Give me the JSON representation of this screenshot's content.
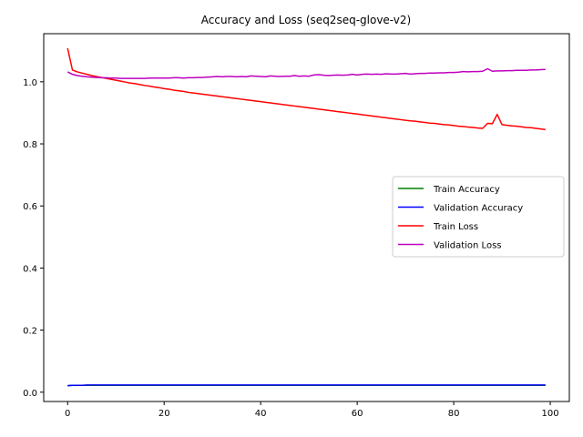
{
  "chart_data": {
    "type": "line",
    "title": "Accuracy and Loss (seq2seq-glove-v2)",
    "xlabel": "",
    "ylabel": "",
    "xlim": [
      -4.95,
      103.95
    ],
    "ylim": [
      -0.03,
      1.155
    ],
    "xticks": [
      0,
      20,
      40,
      60,
      80,
      100
    ],
    "yticks": [
      0.0,
      0.2,
      0.4,
      0.6,
      0.8,
      1.0
    ],
    "xtick_labels": [
      "0",
      "20",
      "40",
      "60",
      "80",
      "100"
    ],
    "ytick_labels": [
      "0.0",
      "0.2",
      "0.4",
      "0.6",
      "0.8",
      "1.0"
    ],
    "grid": false,
    "legend_position": "center-right",
    "x": [
      0,
      1,
      2,
      3,
      4,
      5,
      6,
      7,
      8,
      9,
      10,
      11,
      12,
      13,
      14,
      15,
      16,
      17,
      18,
      19,
      20,
      21,
      22,
      23,
      24,
      25,
      26,
      27,
      28,
      29,
      30,
      31,
      32,
      33,
      34,
      35,
      36,
      37,
      38,
      39,
      40,
      41,
      42,
      43,
      44,
      45,
      46,
      47,
      48,
      49,
      50,
      51,
      52,
      53,
      54,
      55,
      56,
      57,
      58,
      59,
      60,
      61,
      62,
      63,
      64,
      65,
      66,
      67,
      68,
      69,
      70,
      71,
      72,
      73,
      74,
      75,
      76,
      77,
      78,
      79,
      80,
      81,
      82,
      83,
      84,
      85,
      86,
      87,
      88,
      89,
      90,
      91,
      92,
      93,
      94,
      95,
      96,
      97,
      98,
      99
    ],
    "series": [
      {
        "name": "Train Accuracy",
        "color": "#008000",
        "values": [
          0.021,
          0.022,
          0.022,
          0.022,
          0.022,
          0.022,
          0.022,
          0.022,
          0.022,
          0.022,
          0.022,
          0.022,
          0.022,
          0.022,
          0.022,
          0.022,
          0.022,
          0.022,
          0.022,
          0.022,
          0.022,
          0.022,
          0.022,
          0.022,
          0.022,
          0.022,
          0.022,
          0.022,
          0.022,
          0.022,
          0.022,
          0.022,
          0.022,
          0.022,
          0.022,
          0.022,
          0.022,
          0.022,
          0.022,
          0.022,
          0.022,
          0.022,
          0.022,
          0.022,
          0.022,
          0.022,
          0.022,
          0.022,
          0.022,
          0.022,
          0.022,
          0.022,
          0.022,
          0.022,
          0.022,
          0.022,
          0.022,
          0.022,
          0.022,
          0.022,
          0.022,
          0.022,
          0.022,
          0.022,
          0.022,
          0.022,
          0.022,
          0.022,
          0.022,
          0.022,
          0.022,
          0.022,
          0.022,
          0.022,
          0.022,
          0.022,
          0.022,
          0.022,
          0.022,
          0.022,
          0.022,
          0.022,
          0.022,
          0.022,
          0.022,
          0.022,
          0.022,
          0.022,
          0.022,
          0.022,
          0.022,
          0.022,
          0.022,
          0.022,
          0.022,
          0.022,
          0.022,
          0.022,
          0.022,
          0.022
        ]
      },
      {
        "name": "Validation Accuracy",
        "color": "#0000ff",
        "values": [
          0.021,
          0.022,
          0.022,
          0.022,
          0.023,
          0.023,
          0.023,
          0.023,
          0.023,
          0.023,
          0.023,
          0.023,
          0.023,
          0.023,
          0.023,
          0.023,
          0.023,
          0.023,
          0.023,
          0.023,
          0.023,
          0.023,
          0.023,
          0.023,
          0.023,
          0.023,
          0.023,
          0.023,
          0.023,
          0.023,
          0.023,
          0.023,
          0.023,
          0.023,
          0.023,
          0.023,
          0.023,
          0.023,
          0.023,
          0.023,
          0.023,
          0.023,
          0.023,
          0.023,
          0.023,
          0.023,
          0.023,
          0.023,
          0.023,
          0.023,
          0.023,
          0.023,
          0.023,
          0.023,
          0.023,
          0.023,
          0.023,
          0.023,
          0.023,
          0.023,
          0.023,
          0.023,
          0.023,
          0.023,
          0.023,
          0.023,
          0.023,
          0.023,
          0.023,
          0.023,
          0.023,
          0.023,
          0.023,
          0.023,
          0.023,
          0.023,
          0.023,
          0.023,
          0.023,
          0.023,
          0.023,
          0.023,
          0.023,
          0.023,
          0.023,
          0.023,
          0.023,
          0.023,
          0.023,
          0.023,
          0.023,
          0.023,
          0.023,
          0.023,
          0.023,
          0.023,
          0.023,
          0.023,
          0.023,
          0.023
        ]
      },
      {
        "name": "Train Loss",
        "color": "#ff0000",
        "values": [
          1.108,
          1.038,
          1.032,
          1.028,
          1.024,
          1.02,
          1.017,
          1.014,
          1.011,
          1.008,
          1.005,
          1.002,
          0.999,
          0.996,
          0.994,
          0.991,
          0.988,
          0.986,
          0.983,
          0.981,
          0.978,
          0.976,
          0.973,
          0.971,
          0.969,
          0.966,
          0.964,
          0.962,
          0.96,
          0.958,
          0.956,
          0.954,
          0.952,
          0.95,
          0.948,
          0.946,
          0.944,
          0.942,
          0.94,
          0.938,
          0.936,
          0.934,
          0.932,
          0.93,
          0.928,
          0.926,
          0.924,
          0.922,
          0.92,
          0.918,
          0.916,
          0.914,
          0.912,
          0.91,
          0.908,
          0.906,
          0.904,
          0.902,
          0.9,
          0.898,
          0.896,
          0.894,
          0.892,
          0.89,
          0.888,
          0.886,
          0.884,
          0.882,
          0.88,
          0.878,
          0.876,
          0.874,
          0.873,
          0.871,
          0.869,
          0.867,
          0.866,
          0.864,
          0.862,
          0.861,
          0.859,
          0.857,
          0.856,
          0.854,
          0.853,
          0.851,
          0.85,
          0.866,
          0.865,
          0.895,
          0.862,
          0.86,
          0.858,
          0.857,
          0.855,
          0.853,
          0.852,
          0.85,
          0.848,
          0.846
        ]
      },
      {
        "name": "Validation Loss",
        "color": "#bf00bf",
        "values": [
          1.032,
          1.024,
          1.02,
          1.018,
          1.016,
          1.015,
          1.014,
          1.013,
          1.013,
          1.012,
          1.012,
          1.011,
          1.011,
          1.011,
          1.011,
          1.011,
          1.011,
          1.012,
          1.012,
          1.012,
          1.012,
          1.012,
          1.013,
          1.013,
          1.012,
          1.013,
          1.013,
          1.014,
          1.014,
          1.015,
          1.016,
          1.017,
          1.016,
          1.017,
          1.017,
          1.016,
          1.017,
          1.016,
          1.019,
          1.018,
          1.017,
          1.016,
          1.019,
          1.018,
          1.017,
          1.018,
          1.018,
          1.02,
          1.018,
          1.019,
          1.018,
          1.022,
          1.023,
          1.021,
          1.02,
          1.021,
          1.022,
          1.021,
          1.022,
          1.024,
          1.022,
          1.024,
          1.025,
          1.024,
          1.025,
          1.024,
          1.026,
          1.025,
          1.025,
          1.026,
          1.027,
          1.025,
          1.026,
          1.027,
          1.027,
          1.028,
          1.028,
          1.029,
          1.029,
          1.03,
          1.03,
          1.031,
          1.033,
          1.032,
          1.033,
          1.033,
          1.034,
          1.042,
          1.034,
          1.035,
          1.035,
          1.036,
          1.036,
          1.037,
          1.037,
          1.037,
          1.038,
          1.038,
          1.039,
          1.04
        ]
      }
    ]
  }
}
